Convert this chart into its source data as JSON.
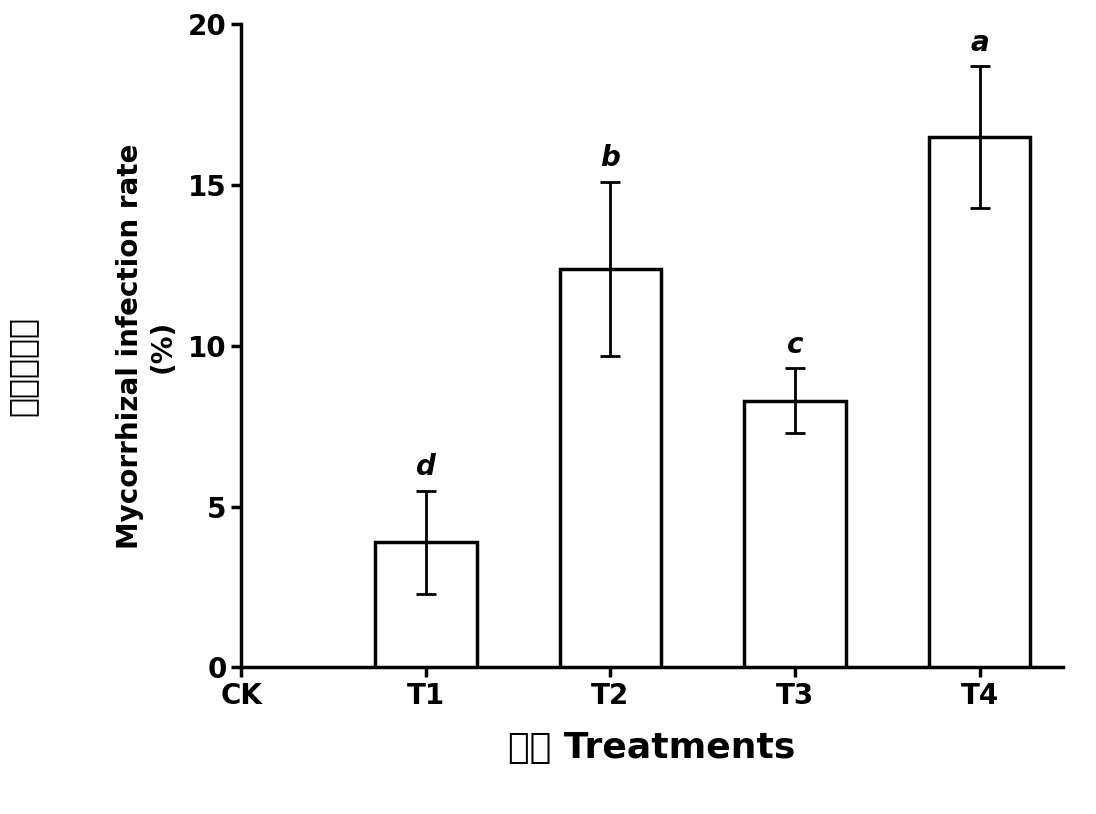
{
  "categories": [
    "CK",
    "T1",
    "T2",
    "T3",
    "T4"
  ],
  "values": [
    0,
    3.9,
    12.4,
    8.3,
    16.5
  ],
  "errors": [
    0,
    1.6,
    2.7,
    1.0,
    2.2
  ],
  "letters": [
    "",
    "d",
    "b",
    "c",
    "a"
  ],
  "bar_color": "#ffffff",
  "bar_edgecolor": "#000000",
  "bar_linewidth": 2.5,
  "ylabel_chinese": "菌根侵染率",
  "ylabel_english": "Mycorrhizal infection rate",
  "ylabel_unit": "(%)",
  "xlabel_chinese": "处理",
  "xlabel_english": "Treatments",
  "ylim": [
    0,
    20
  ],
  "yticks": [
    0,
    5,
    10,
    15,
    20
  ],
  "tick_fontsize": 20,
  "label_fontsize": 20,
  "letter_fontsize": 20,
  "chinese_fontsize": 24,
  "xlabel_fontsize": 26,
  "background_color": "#ffffff",
  "bar_width": 0.55,
  "capsize": 7,
  "error_linewidth": 2.0,
  "spine_linewidth": 2.5
}
